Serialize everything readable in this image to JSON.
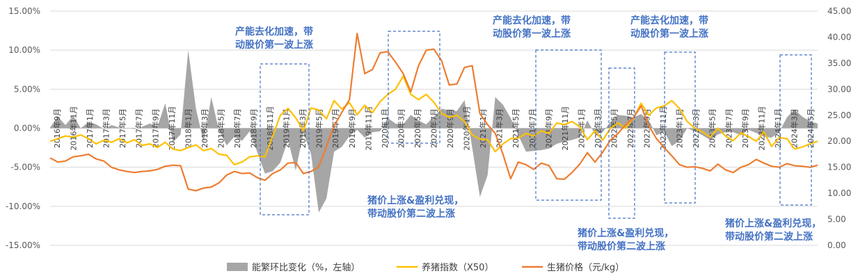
{
  "chart_data": {
    "type": "area+line",
    "x_labels": [
      "2016年9月",
      "2016年11月",
      "2017年1月",
      "2017年3月",
      "2017年5月",
      "2017年7月",
      "2017年9月",
      "2017年11月",
      "2018年1月",
      "2018年3月",
      "2018年5月",
      "2018年7月",
      "2018年9月",
      "2018年11月",
      "2019年1月",
      "2019年3月",
      "2019年5月",
      "2019年7月",
      "2019年9月",
      "2019年11月",
      "2020年1月",
      "2020年3月",
      "2020年5月",
      "2020年7月",
      "2020年9月",
      "2020年11月",
      "2021年1月",
      "2021年3月",
      "2021年5月",
      "2021年7月",
      "2021年9月",
      "2021年11月",
      "2022年1月",
      "2022年3月",
      "2022年5月",
      "2022年7月",
      "2022年9月",
      "2022年11月",
      "2023年1月",
      "2023年3月",
      "2023年5月",
      "2023年7月",
      "2023年9月",
      "2023年11月",
      "2024年1月",
      "2024年3月",
      "2024年5月"
    ],
    "left_axis": {
      "min": -15,
      "max": 15,
      "ticks": [
        "-15.00%",
        "-10.00%",
        "-5.00%",
        "0.00%",
        "5.00%",
        "10.00%",
        "15.00%"
      ]
    },
    "right_axis": {
      "min": 0,
      "max": 45,
      "ticks": [
        "0.00",
        "5.00",
        "10.00",
        "15.00",
        "20.00",
        "25.00",
        "30.00",
        "35.00",
        "40.00",
        "45.00"
      ]
    },
    "series": [
      {
        "name": "能繁环比变化（%，左轴）",
        "kind": "area",
        "axis": "left",
        "color": "#a6a6a6",
        "values": [
          0.1,
          1.5,
          0.4,
          1.6,
          0.0,
          0.8,
          0.5,
          -0.1,
          0.4,
          0.1,
          0.0,
          -0.1,
          0.2,
          0.6,
          0.2,
          3.2,
          -1.8,
          -0.8,
          10.0,
          2.5,
          -1.8,
          4.0,
          -0.3,
          -2.2,
          -1.1,
          -1.6,
          -0.4,
          -3.1,
          -5.8,
          -5.5,
          -4.4,
          -1.5,
          -5.4,
          -0.6,
          -3.3,
          -10.8,
          -9.0,
          -3.0,
          -2.4,
          -1.0,
          -0.2,
          -1.2,
          -0.5,
          -0.4,
          1.3,
          0.6,
          0.5,
          1.7,
          1.0,
          0.5,
          1.5,
          2.5,
          2.3,
          2.2,
          3.6,
          -2.5,
          -8.8,
          -6.0,
          4.0,
          3.0,
          1.3,
          -0.9,
          -3.0,
          -2.9,
          -2.8,
          -2.6,
          -2.0,
          -1.7,
          -1.5,
          -1.2,
          1.0,
          -0.8,
          -0.5,
          0.8,
          1.7,
          1.6,
          1.4,
          1.8,
          1.0,
          -0.9,
          -0.4,
          -2.3,
          -1.6,
          0.0,
          -0.4,
          -0.9,
          -1.5,
          -0.8,
          -0.5,
          -0.5,
          -0.9,
          -0.2,
          -0.6,
          -1.1,
          -1.2,
          -0.5,
          1.4,
          2.4,
          1.5,
          0.9,
          0.6
        ]
      },
      {
        "name": "养猪指数（X50）",
        "kind": "line",
        "axis": "right",
        "color": "#ffc000",
        "values": [
          20.0,
          20.5,
          21.0,
          20.8,
          21.2,
          20.5,
          19.5,
          20.2,
          19.8,
          20.5,
          19.7,
          20.3,
          19.2,
          19.5,
          18.8,
          19.8,
          18.5,
          18.2,
          18.8,
          19.3,
          18.2,
          18.6,
          17.5,
          17.3,
          15.5,
          16.0,
          17.0,
          17.2,
          17.0,
          21.0,
          25.0,
          26.3,
          24.5,
          22.0,
          26.4,
          26.0,
          24.3,
          27.8,
          26.2,
          27.4,
          25.1,
          26.9,
          25.5,
          27.6,
          29.0,
          30.0,
          32.5,
          29.0,
          28.0,
          29.0,
          27.5,
          25.3,
          24.6,
          25.0,
          23.8,
          21.2,
          20.4,
          20.3,
          18.0,
          19.5,
          20.5,
          20.6,
          21.5,
          21.0,
          22.0,
          21.5,
          23.5,
          23.2,
          23.8,
          22.8,
          20.3,
          22.0,
          20.2,
          22.5,
          23.5,
          22.5,
          24.5,
          27.3,
          25.0,
          26.4,
          26.8,
          27.8,
          26.3,
          23.8,
          22.5,
          21.8,
          20.8,
          22.5,
          21.0,
          20.1,
          21.6,
          20.9,
          20.0,
          21.8,
          19.0,
          20.7,
          20.5,
          18.5,
          18.9,
          19.5,
          20.0
        ]
      },
      {
        "name": "生猪价格（元/kg）",
        "kind": "line",
        "axis": "right",
        "color": "#ed7d31",
        "values": [
          16.8,
          16.0,
          16.2,
          17.0,
          17.2,
          17.5,
          16.6,
          16.2,
          15.0,
          14.5,
          14.2,
          14.0,
          14.2,
          14.3,
          14.6,
          15.2,
          15.4,
          15.3,
          10.8,
          10.5,
          11.0,
          11.2,
          12.0,
          13.5,
          14.2,
          13.8,
          13.9,
          13.0,
          12.5,
          13.8,
          14.5,
          15.8,
          15.9,
          13.8,
          14.2,
          15.1,
          19.0,
          23.0,
          25.5,
          28.0,
          40.7,
          33.0,
          33.8,
          37.0,
          37.2,
          35.2,
          33.0,
          29.5,
          34.5,
          37.5,
          37.7,
          35.5,
          30.8,
          31.0,
          34.2,
          34.5,
          25.3,
          23.2,
          21.5,
          17.5,
          12.8,
          16.0,
          15.5,
          14.6,
          15.8,
          15.3,
          12.8,
          12.7,
          14.0,
          15.6,
          17.8,
          16.0,
          17.9,
          20.2,
          21.5,
          23.2,
          24.5,
          26.8,
          23.0,
          20.5,
          18.8,
          17.2,
          15.5,
          15.0,
          15.1,
          14.8,
          14.3,
          15.6,
          14.5,
          14.0,
          15.0,
          15.5,
          16.5,
          15.8,
          15.2,
          15.0,
          15.7,
          15.3,
          15.2,
          15.0,
          15.4
        ]
      }
    ],
    "annotations": [
      {
        "text": [
          "产能去化加速，带",
          "动股价第一波上涨"
        ]
      },
      {
        "text": [
          "产能去化加速，带",
          "动股价第一波上涨"
        ]
      },
      {
        "text": [
          "产能去化加速，带",
          "动股价第一波上涨"
        ]
      },
      {
        "text": [
          "猪价上涨&盈利兑现，",
          "带动股价第二波上涨"
        ]
      },
      {
        "text": [
          "猪价上涨&盈利兑现，",
          "带动股价第二波上涨"
        ]
      },
      {
        "text": [
          "猪价上涨&盈利兑现，",
          "带动股价第二波上涨"
        ]
      }
    ],
    "legend_position": "bottom",
    "grid": "horizontal"
  }
}
